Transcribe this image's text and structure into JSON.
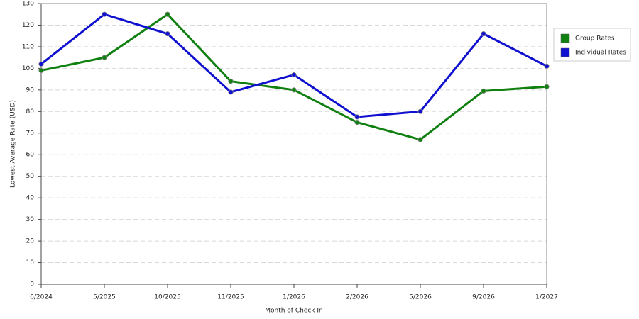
{
  "chart_data": {
    "type": "line",
    "xlabel": "Month of Check In",
    "ylabel": "Lowest Average Rate (USD)",
    "categories": [
      "6/2024",
      "5/2025",
      "10/2025",
      "11/2025",
      "1/2026",
      "2/2026",
      "5/2026",
      "9/2026",
      "1/2027"
    ],
    "series": [
      {
        "name": "Group Rates",
        "color": "#108010",
        "values": [
          99,
          105,
          125,
          94,
          90,
          75,
          67,
          89.5,
          91.5
        ]
      },
      {
        "name": "Individual Rates",
        "color": "#1010d0",
        "values": [
          102,
          125,
          116,
          89,
          97,
          77.5,
          80,
          116,
          101
        ]
      }
    ],
    "ylim": [
      0,
      130
    ],
    "yticks": [
      0,
      10,
      20,
      30,
      40,
      50,
      60,
      70,
      80,
      90,
      100,
      110,
      120,
      130
    ],
    "grid": true,
    "legend": "right"
  }
}
